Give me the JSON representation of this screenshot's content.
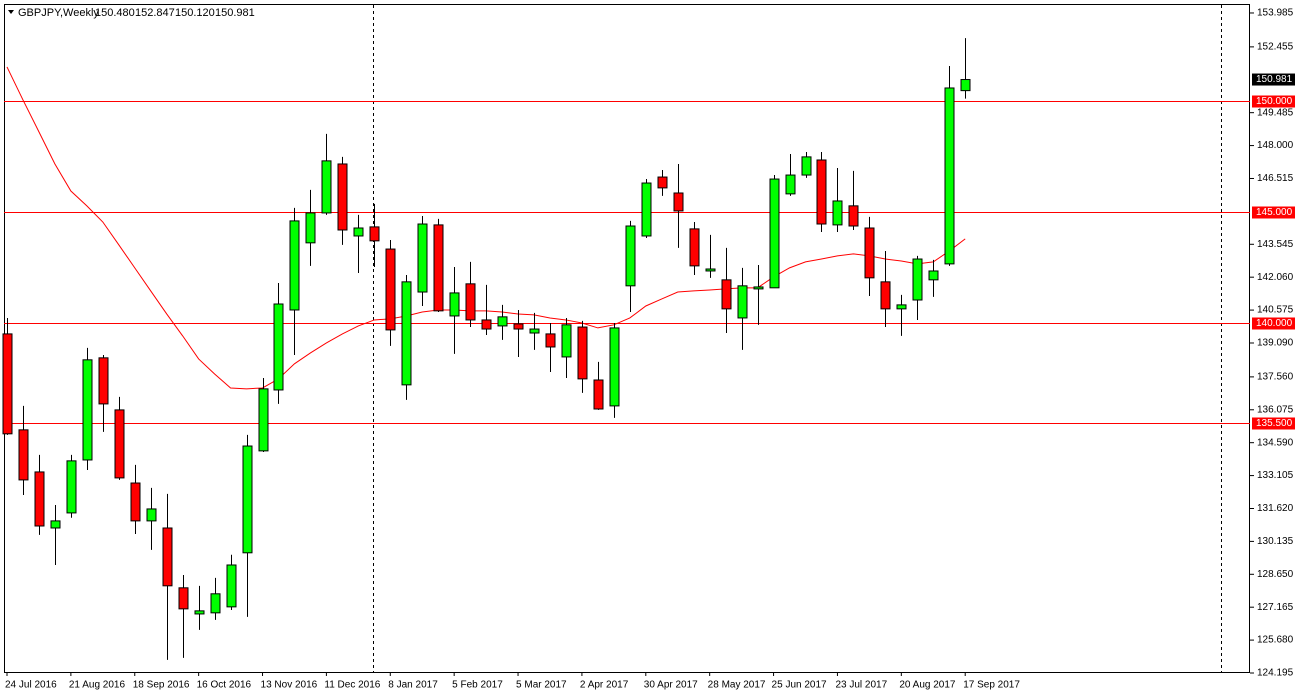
{
  "chart_data": {
    "type": "candlestick",
    "title": "GBPJPY,Weekly",
    "last_ohlc_labels": [
      "150.480",
      "152.847",
      "150.120",
      "150.981"
    ],
    "categories": [
      "24 Jul 2016",
      null,
      null,
      null,
      "21 Aug 2016",
      null,
      null,
      null,
      "18 Sep 2016",
      null,
      null,
      null,
      "16 Oct 2016",
      null,
      null,
      null,
      "13 Nov 2016",
      null,
      null,
      null,
      "11 Dec 2016",
      null,
      null,
      null,
      "8 Jan 2017",
      null,
      null,
      null,
      "5 Feb 2017",
      null,
      null,
      null,
      "5 Mar 2017",
      null,
      null,
      null,
      "2 Apr 2017",
      null,
      null,
      null,
      "30 Apr 2017",
      null,
      null,
      null,
      "28 May 2017",
      null,
      null,
      null,
      "25 Jun 2017",
      null,
      null,
      null,
      "23 Jul 2017",
      null,
      null,
      null,
      "20 Aug 2017",
      null,
      null,
      null,
      "17 Sep 2017"
    ],
    "open": [
      139.5,
      135.17,
      133.27,
      130.74,
      131.42,
      133.81,
      138.42,
      136.07,
      132.77,
      131.06,
      130.74,
      128.04,
      126.86,
      126.91,
      127.18,
      129.62,
      134.22,
      136.97,
      140.58,
      143.61,
      144.96,
      147.17,
      143.92,
      144.33,
      143.33,
      137.2,
      141.39,
      144.42,
      140.31,
      141.76,
      140.13,
      139.86,
      139.95,
      139.54,
      139.5,
      138.46,
      139.81,
      137.42,
      136.25,
      141.67,
      143.92,
      146.58,
      145.86,
      144.24,
      142.34,
      141.94,
      140.22,
      141.53,
      141.58,
      145.82,
      146.67,
      147.35,
      144.42,
      145.28,
      144.28,
      141.85,
      140.63,
      141.03,
      141.94,
      142.66,
      150.48
    ],
    "high": [
      140.22,
      136.25,
      134.04,
      131.78,
      134.04,
      138.87,
      138.55,
      136.66,
      133.59,
      132.55,
      132.28,
      128.62,
      128.13,
      128.49,
      129.53,
      134.94,
      137.51,
      141.8,
      145.19,
      146.0,
      148.53,
      147.49,
      144.87,
      145.37,
      143.74,
      142.16,
      144.82,
      144.69,
      142.52,
      142.75,
      141.71,
      140.81,
      140.58,
      140.45,
      139.99,
      140.22,
      140.09,
      138.24,
      139.99,
      144.6,
      146.49,
      146.9,
      147.17,
      144.55,
      143.97,
      143.38,
      142.48,
      142.61,
      146.67,
      147.62,
      147.71,
      147.71,
      146.99,
      146.86,
      144.78,
      143.24,
      141.26,
      143.02,
      142.84,
      151.59,
      152.847
    ],
    "low": [
      134.94,
      132.23,
      130.43,
      129.07,
      131.2,
      133.36,
      135.08,
      132.91,
      130.47,
      129.75,
      124.79,
      124.88,
      126.14,
      126.59,
      127.04,
      126.73,
      134.17,
      136.34,
      138.55,
      142.57,
      144.87,
      143.52,
      142.25,
      142.52,
      138.96,
      136.52,
      140.76,
      140.49,
      138.6,
      139.81,
      139.45,
      139.23,
      138.46,
      138.78,
      137.78,
      137.51,
      136.84,
      136.07,
      135.71,
      140.49,
      143.83,
      145.73,
      143.38,
      142.16,
      142.03,
      139.54,
      138.78,
      139.91,
      141.58,
      145.73,
      146.54,
      144.1,
      144.1,
      144.19,
      141.21,
      139.81,
      139.41,
      140.13,
      141.17,
      142.57,
      150.12
    ],
    "close": [
      134.99,
      132.91,
      130.83,
      131.06,
      133.77,
      138.33,
      136.34,
      133.0,
      131.06,
      131.6,
      128.13,
      127.09,
      127.0,
      127.77,
      129.07,
      134.44,
      137.02,
      140.85,
      144.6,
      144.96,
      147.31,
      144.19,
      144.28,
      143.7,
      139.68,
      141.85,
      144.46,
      140.54,
      141.35,
      140.13,
      139.72,
      140.27,
      139.72,
      139.72,
      138.91,
      139.91,
      137.47,
      136.11,
      139.77,
      144.37,
      146.31,
      146.09,
      145.05,
      142.57,
      142.43,
      140.63,
      141.67,
      141.62,
      146.49,
      146.67,
      147.49,
      144.46,
      145.5,
      144.37,
      142.03,
      140.63,
      140.81,
      142.88,
      142.34,
      150.6,
      150.981
    ],
    "up_color": "#00ff00",
    "down_color": "#ff0000",
    "ma": {
      "color": "#ff0000",
      "values": [
        151.55,
        150.06,
        148.62,
        147.17,
        145.95,
        145.28,
        144.55,
        143.52,
        142.48,
        141.44,
        140.4,
        139.41,
        138.37,
        137.69,
        137.06,
        137.02,
        137.06,
        137.47,
        138.15,
        138.64,
        139.09,
        139.5,
        139.86,
        140.13,
        140.18,
        140.31,
        140.49,
        140.58,
        140.58,
        140.54,
        140.54,
        140.49,
        140.4,
        140.36,
        140.22,
        140.13,
        139.99,
        139.77,
        139.91,
        140.22,
        140.76,
        141.08,
        141.39,
        141.44,
        141.48,
        141.53,
        141.58,
        141.58,
        142.07,
        142.48,
        142.75,
        142.88,
        143.02,
        143.11,
        143.02,
        142.88,
        142.79,
        142.66,
        142.75,
        143.24,
        143.79
      ]
    },
    "levels": {
      "color": "#ff0000",
      "values": [
        {
          "value": 150,
          "label": "150.000"
        },
        {
          "value": 145,
          "label": "145.000"
        },
        {
          "value": 140,
          "label": "140.000"
        },
        {
          "value": 135.5,
          "label": "135.500"
        }
      ]
    },
    "ylim": [
      124.24,
      154.39
    ],
    "yticks": [
      153.985,
      152.455,
      149.485,
      {
        "value": 148,
        "label": "148.000"
      },
      146.515,
      143.545,
      {
        "value": 142.06,
        "label": "142.060"
      },
      140.575,
      {
        "value": 139.09,
        "label": "139.090"
      },
      {
        "value": 137.56,
        "label": "137.560"
      },
      136.075,
      {
        "value": 134.59,
        "label": "134.590"
      },
      133.105,
      {
        "value": 131.62,
        "label": "131.620"
      },
      130.135,
      {
        "value": 128.65,
        "label": "128.650"
      },
      127.165,
      {
        "value": 125.68,
        "label": "125.680"
      },
      124.195
    ]
  }
}
